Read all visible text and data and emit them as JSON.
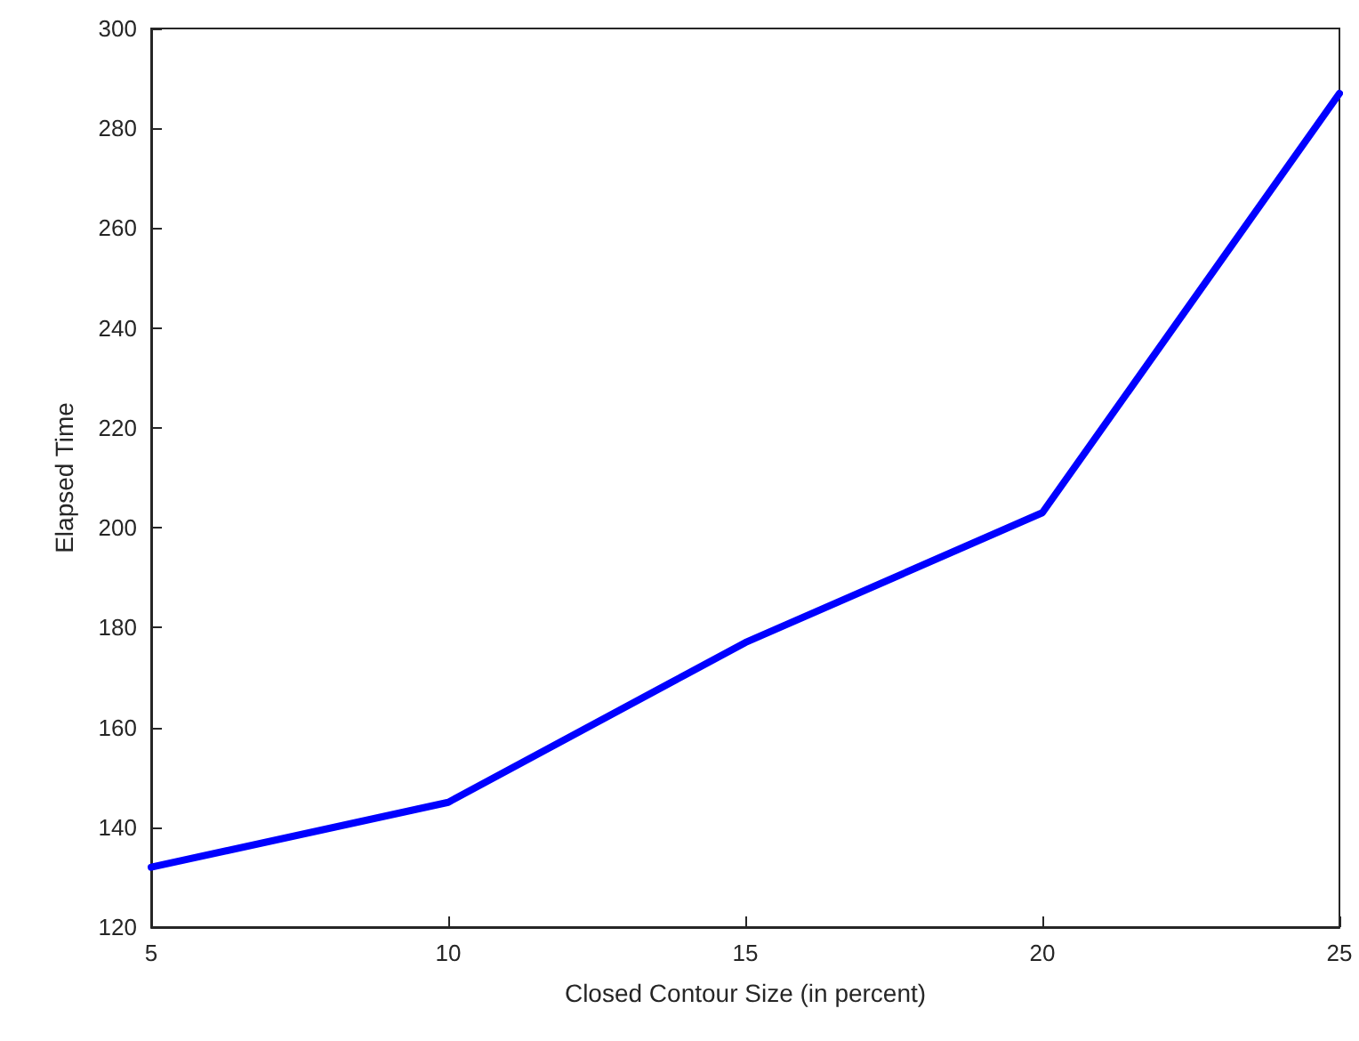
{
  "chart_data": {
    "type": "line",
    "xlabel": "Closed Contour Size (in percent)",
    "ylabel": "Elapsed Time",
    "x": [
      5,
      10,
      15,
      20,
      25
    ],
    "series": [
      {
        "color": "#0000ff",
        "values": [
          132,
          145,
          177,
          203,
          287
        ]
      }
    ],
    "xlim": [
      5,
      25
    ],
    "xticks": [
      5,
      10,
      15,
      20,
      25
    ],
    "ylim": [
      120,
      300
    ],
    "yticks": [
      120,
      140,
      160,
      180,
      200,
      220,
      240,
      260,
      280,
      300
    ],
    "grid": false,
    "marker": "none",
    "line_style": "solid"
  }
}
